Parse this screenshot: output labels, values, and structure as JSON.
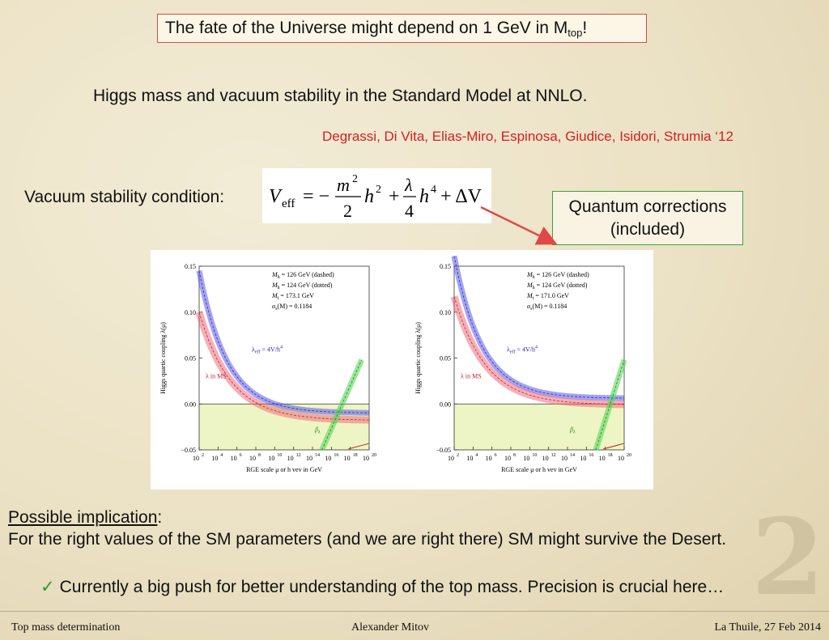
{
  "title": {
    "main": "The fate of the Universe might depend on 1 GeV in M",
    "sub": "top",
    "end": "!"
  },
  "subtitle": "Higgs mass and vacuum stability in the Standard Model at NNLO.",
  "authors": "Degrassi, Di Vita, Elias-Miro, Espinosa, Giudice, Isidori, Strumia ‘12",
  "vacuum_label": "Vacuum stability condition:",
  "formula": {
    "lhs": "V",
    "lhs_sub": "eff",
    "terms": [
      "= −",
      "m",
      "2",
      "h",
      "2",
      "+",
      "λ",
      "4",
      "h",
      "4",
      "+ ΔV"
    ]
  },
  "callout": {
    "line1": "Quantum corrections",
    "line2": "(included)"
  },
  "plots": {
    "ylabel": "Higgs quartic coupling λ(μ)",
    "xlabel": "RGE scale μ or h vev in GeV",
    "yticks": [
      "0.15",
      "0.10",
      "0.05",
      "0.00",
      "−0.05"
    ],
    "xticks": [
      "10",
      "10",
      "10",
      "10",
      "10",
      "10",
      "10",
      "10",
      "10",
      "10"
    ],
    "xexp": [
      "2",
      "4",
      "6",
      "8",
      "10",
      "12",
      "14",
      "16",
      "18",
      "20"
    ],
    "lambda_eff_label": "λ",
    "lambda_eff_sub": "eff",
    "lambda_eff_rest": " = 4V/h",
    "lambda_eff_sup": "4",
    "lambda_ms_label": "λ in MS",
    "beta_label": "β",
    "beta_sub": "λ",
    "left": {
      "legend": [
        "M_h = 126 GeV (dashed)",
        "M_h = 124 GeV (dotted)",
        "M_t = 173.1 GeV",
        "α_s(M_Z) = 0.1184"
      ],
      "mh126": "126 GeV (dashed)",
      "mh124": "124 GeV (dotted)",
      "mt": "173.1 GeV",
      "as": "0.1184"
    },
    "right": {
      "legend": [
        "M_h = 126 GeV (dashed)",
        "M_h = 124 GeV (dotted)",
        "M_t = 171.0 GeV",
        "α_s(M_Z) = 0.1184"
      ],
      "mh126": "126 GeV (dashed)",
      "mh124": "124 GeV (dotted)",
      "mt": "171.0 GeV",
      "as": "0.1184"
    }
  },
  "implication": {
    "heading": "Possible implication",
    "colon": ":",
    "text": "For the right values of the SM parameters (and we are right there) SM might survive the Desert."
  },
  "bullet": {
    "check": "✓",
    "text": "Currently a big push for better understanding of the top mass. Precision is crucial here…"
  },
  "slide_number": "2",
  "footer": {
    "left": "Top mass determination",
    "center": "Alexander Mitov",
    "right": "La Thuile, 27 Feb 2014"
  },
  "colors": {
    "title_border": "#d94a4a",
    "authors": "#d42020",
    "callout_border": "#3aa33a",
    "arrow": "#e04848",
    "band_blue": "#5a5ae8",
    "band_red": "#ee6070",
    "band_green": "#5ad65a",
    "region_yellow": "#eef5c4"
  }
}
